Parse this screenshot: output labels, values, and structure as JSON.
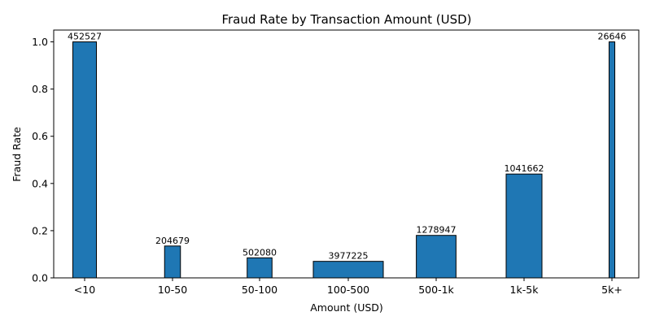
{
  "chart_data": {
    "type": "bar",
    "title": "Fraud Rate by Transaction Amount (USD)",
    "xlabel": "Amount (USD)",
    "ylabel": "Fraud Rate",
    "categories": [
      "<10",
      "10-50",
      "50-100",
      "100-500",
      "500-1k",
      "1k-5k",
      "5k+"
    ],
    "values": [
      1.0,
      0.135,
      0.085,
      0.07,
      0.18,
      0.44,
      1.0
    ],
    "bar_counts": [
      452527,
      204679,
      502080,
      3977225,
      1278947,
      1041662,
      26646
    ],
    "bar_count_labels": [
      "452527",
      "204679",
      "502080",
      "3977225",
      "1278947",
      "1041662",
      "26646"
    ],
    "ylim": [
      0,
      1.05
    ],
    "yticks": [
      0.0,
      0.2,
      0.4,
      0.6,
      0.8,
      1.0
    ],
    "ytick_labels": [
      "0.0",
      "0.2",
      "0.4",
      "0.6",
      "0.8",
      "1.0"
    ],
    "grid": false,
    "bar_color": "#1f77b4",
    "edge_color": "#000000"
  }
}
